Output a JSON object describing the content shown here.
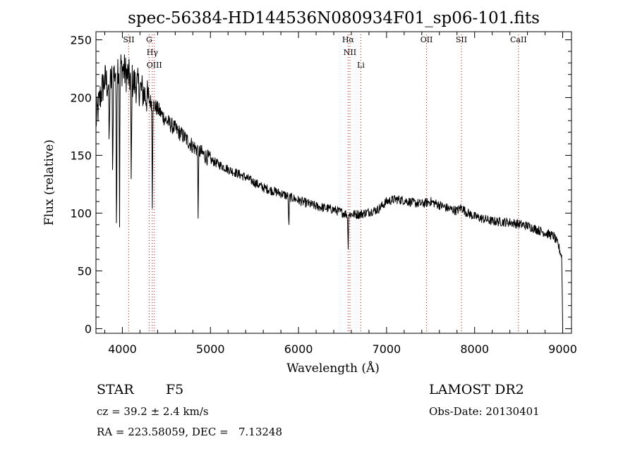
{
  "chart_data": {
    "type": "line",
    "title": "spec-56384-HD144536N080934F01_sp06-101.fits",
    "xlabel": "Wavelength (Å)",
    "ylabel": "Flux (relative)",
    "xlim": [
      3700,
      9100
    ],
    "ylim": [
      -4,
      257
    ],
    "x_ticks": [
      4000,
      5000,
      6000,
      7000,
      8000,
      9000
    ],
    "y_ticks": [
      0,
      50,
      100,
      150,
      200,
      250
    ],
    "grid": false,
    "line_color": "#000000",
    "marker_color": "#cc0000",
    "continuum": {
      "x": [
        3700,
        3760,
        3800,
        3850,
        3900,
        3950,
        4000,
        4050,
        4100,
        4200,
        4300,
        4400,
        4500,
        4600,
        4700,
        4800,
        4900,
        5000,
        5200,
        5400,
        5600,
        5800,
        6000,
        6200,
        6400,
        6550,
        6700,
        6900,
        7000,
        7100,
        7200,
        7300,
        7400,
        7500,
        7600,
        7700,
        7800,
        7850,
        7900,
        8000,
        8200,
        8400,
        8600,
        8800,
        8900,
        8950,
        8990,
        9000
      ],
      "y": [
        180,
        205,
        215,
        210,
        220,
        228,
        225,
        220,
        215,
        208,
        198,
        190,
        180,
        173,
        166,
        158,
        152,
        146,
        138,
        131,
        122,
        117,
        111,
        106,
        103,
        99,
        99,
        103,
        110,
        112,
        111,
        109,
        108,
        110,
        107,
        104,
        102,
        105,
        101,
        97,
        93,
        92,
        89,
        83,
        80,
        72,
        62,
        0
      ]
    },
    "absorption_features": [
      {
        "x": 3850,
        "depth": 60
      },
      {
        "x": 3890,
        "depth": 90
      },
      {
        "x": 3933,
        "depth": 150
      },
      {
        "x": 3968,
        "depth": 130
      },
      {
        "x": 4101,
        "depth": 100
      },
      {
        "x": 4340,
        "depth": 85
      },
      {
        "x": 4861,
        "depth": 60
      },
      {
        "x": 5890,
        "depth": 30
      },
      {
        "x": 6563,
        "depth": 30
      }
    ],
    "line_markers": [
      {
        "x": 4072,
        "labels": [
          "SII"
        ]
      },
      {
        "x": 4304,
        "labels": [
          "G"
        ]
      },
      {
        "x": 4340,
        "labels": [
          "Hγ"
        ]
      },
      {
        "x": 4363,
        "labels": [
          "OIII"
        ]
      },
      {
        "x": 6563,
        "labels": [
          "Hα"
        ]
      },
      {
        "x": 6584,
        "labels": [
          "NII"
        ]
      },
      {
        "x": 6708,
        "labels": [
          "Li"
        ]
      },
      {
        "x": 7454,
        "labels": [
          "OII"
        ]
      },
      {
        "x": 7850,
        "labels": [
          "SII"
        ]
      },
      {
        "x": 8498,
        "labels": [
          "CaII"
        ]
      }
    ]
  },
  "info": {
    "object_class": "STAR",
    "subclass": "F5",
    "cz": "cz = 39.2 ± 2.4 km/s",
    "coords": "RA = 223.58059, DEC =   7.13248",
    "survey": "LAMOST DR2",
    "obs_date": "Obs-Date: 20130401"
  }
}
